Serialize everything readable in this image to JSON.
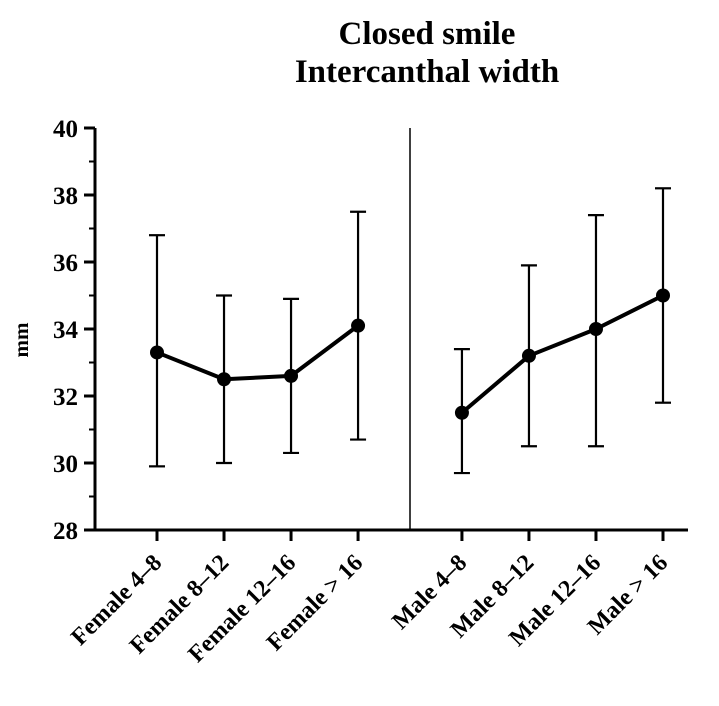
{
  "title": {
    "line1": "Closed smile",
    "line2": "Intercanthal width"
  },
  "chart_data": {
    "type": "line",
    "title": "Closed smile Intercanthal width",
    "xlabel": "",
    "ylabel": "mm",
    "ylim": [
      28,
      40
    ],
    "yticks": [
      28,
      30,
      32,
      34,
      36,
      38,
      40
    ],
    "minor_ticks": [
      29,
      31,
      33,
      35,
      37,
      39
    ],
    "grid": false,
    "legend": "none",
    "categories": [
      "Female 4–8",
      "Female 8–12",
      "Female 12–16",
      "Female > 16",
      "Male 4–8",
      "Male 8–12",
      "Male 12–16",
      "Male > 16"
    ],
    "divider_after_index": 3,
    "series": [
      {
        "name": "Female",
        "indices": [
          0,
          1,
          2,
          3
        ],
        "means": [
          33.3,
          32.5,
          32.6,
          34.1
        ],
        "upper": [
          36.8,
          35.0,
          34.9,
          37.5
        ],
        "lower": [
          29.9,
          30.0,
          30.3,
          30.7
        ]
      },
      {
        "name": "Male",
        "indices": [
          4,
          5,
          6,
          7
        ],
        "means": [
          31.5,
          33.2,
          34.0,
          35.0
        ],
        "upper": [
          33.4,
          35.9,
          37.4,
          38.2
        ],
        "lower": [
          29.7,
          30.5,
          30.5,
          31.8
        ]
      }
    ],
    "marker": "filled-circle",
    "line_color": "#000000"
  }
}
